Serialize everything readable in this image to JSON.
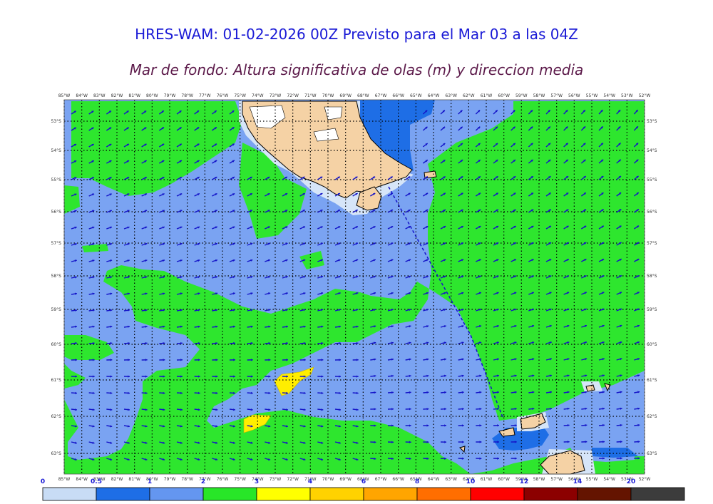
{
  "title": "HRES-WAM: 01-02-2026 00Z Previsto para el Mar 03 a las 04Z",
  "subtitle": "Mar de fondo: Altura significativa de olas (m) y direccion media",
  "lon_labels": [
    "85°W",
    "84°W",
    "83°W",
    "82°W",
    "81°W",
    "80°W",
    "79°W",
    "78°W",
    "77°W",
    "76°W",
    "75°W",
    "74°W",
    "73°W",
    "72°W",
    "71°W",
    "70°W",
    "69°W",
    "68°W",
    "67°W",
    "66°W",
    "65°W",
    "64°W",
    "63°W",
    "62°W",
    "61°W",
    "60°W",
    "59°W",
    "58°W",
    "57°W",
    "56°W",
    "55°W",
    "54°W",
    "53°W",
    "52°W"
  ],
  "lat_labels": [
    "53°S",
    "54°S",
    "55°S",
    "56°S",
    "57°S",
    "58°S",
    "59°S",
    "60°S",
    "61°S",
    "62°S",
    "63°S"
  ],
  "colorbar": {
    "ticks": [
      "0",
      "0.5",
      "1",
      "2",
      "3",
      "4",
      "6",
      "8",
      "10",
      "12",
      "14",
      "20"
    ],
    "colors": [
      "#c8dcf5",
      "#1e6ee6",
      "#6496f0",
      "#28e628",
      "#ffff00",
      "#ffd200",
      "#ffa500",
      "#ff6e00",
      "#ff0000",
      "#8c0000",
      "#641400",
      "#3c3c3c"
    ]
  },
  "legend_colors": {
    "land": "#f5d2a5",
    "arrow": "#1414c8",
    "track": "#1414c8"
  }
}
